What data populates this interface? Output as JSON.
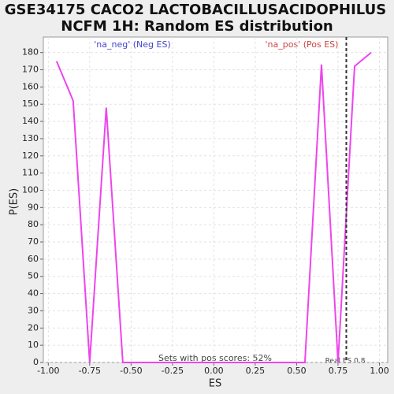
{
  "chart_data": {
    "type": "line",
    "title_lines": [
      "GSE34175 CACO2 LACTOBACILLUSACIDOPHILUS",
      "NCFM 1H: Random ES distribution"
    ],
    "x_label": "ES",
    "y_label": "P(ES)",
    "annotations": [
      "'na_neg' (Neg ES)",
      "'na_pos' (Pos ES)",
      "Sets with pos scores: 52%",
      "Real ES 0.8"
    ],
    "real_es_line": 0.8,
    "x": [
      -0.95,
      -0.85,
      -0.75,
      -0.65,
      -0.55,
      -0.45,
      -0.35,
      -0.25,
      -0.15,
      -0.05,
      0.05,
      0.15,
      0.25,
      0.35,
      0.45,
      0.55,
      0.65,
      0.75,
      0.85,
      0.95
    ],
    "series": [
      {
        "color": "#ee44ee",
        "values": [
          175,
          152,
          0,
          148,
          0,
          0,
          0,
          0,
          0,
          0,
          0,
          0,
          0,
          0,
          0,
          0,
          173,
          0,
          172,
          180
        ]
      }
    ],
    "xlim": [
      -1.03,
      1.05
    ],
    "ylim": [
      0,
      189
    ],
    "xticks": [
      {
        "value": -1,
        "label": "-1.00"
      },
      {
        "value": -0.75,
        "label": "-0.75"
      },
      {
        "value": -0.5,
        "label": "-0.50"
      },
      {
        "value": -0.25,
        "label": "-0.25"
      },
      {
        "value": 0,
        "label": "0.00"
      },
      {
        "value": 0.25,
        "label": "0.25"
      },
      {
        "value": 0.5,
        "label": "0.50"
      },
      {
        "value": 0.75,
        "label": "0.75"
      },
      {
        "value": 1,
        "label": "1.00"
      }
    ],
    "yticks": [
      0,
      10,
      20,
      30,
      40,
      50,
      60,
      70,
      80,
      90,
      100,
      110,
      120,
      130,
      140,
      150,
      160,
      170,
      180
    ],
    "grid": true
  }
}
